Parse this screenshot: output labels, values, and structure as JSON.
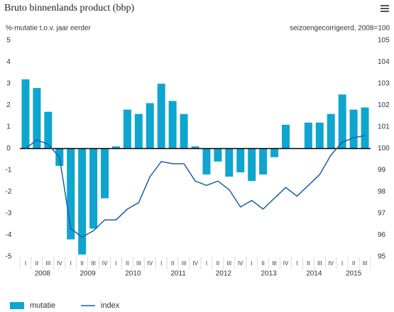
{
  "chart_data": {
    "type": "bar_line",
    "title": "Bruto binnenlands product (bbp)",
    "y_label": "%-mutatie t.o.v. jaar eerder",
    "y2_label": "seizoengecorrigeerd, 2008=100",
    "categories": [
      "I",
      "II",
      "III",
      "IV",
      "I",
      "II",
      "III",
      "IV",
      "I",
      "II",
      "III",
      "IV",
      "I",
      "II",
      "III",
      "IV",
      "I",
      "II",
      "III",
      "IV",
      "I",
      "II",
      "III",
      "IV",
      "I",
      "II",
      "III",
      "IV",
      "I",
      "II",
      "III"
    ],
    "years": [
      "2008",
      "2009",
      "2010",
      "2011",
      "2012",
      "2013",
      "2014",
      "2015"
    ],
    "series": [
      {
        "name": "mutatie",
        "color": "#0ea5cf",
        "kind": "bar",
        "values": [
          3.2,
          2.8,
          1.7,
          -0.8,
          -4.2,
          -4.9,
          -3.7,
          -2.3,
          0.1,
          1.8,
          1.6,
          2.1,
          3.0,
          2.2,
          1.6,
          0.1,
          -1.2,
          -0.6,
          -1.3,
          -1.1,
          -1.5,
          -1.2,
          -0.4,
          1.1,
          0,
          1.2,
          1.2,
          1.6,
          2.5,
          1.8,
          1.9
        ]
      },
      {
        "name": "index",
        "color": "#1a5ea8",
        "kind": "line",
        "axis": "y2",
        "values": [
          100.0,
          100.4,
          100.2,
          99.6,
          96.3,
          95.9,
          96.2,
          96.7,
          96.7,
          97.2,
          97.5,
          98.7,
          99.4,
          99.3,
          99.3,
          98.5,
          98.3,
          98.5,
          98.1,
          97.3,
          97.6,
          97.2,
          97.7,
          98.2,
          97.8,
          98.3,
          98.8,
          99.7,
          100.3,
          100.5,
          100.6
        ]
      }
    ],
    "ylim": [
      -5,
      5
    ],
    "yticks": [
      -5,
      -4,
      -3,
      -2,
      -1,
      0,
      1,
      2,
      3,
      4,
      5
    ],
    "y2lim": [
      95,
      105
    ],
    "y2ticks": [
      95,
      96,
      97,
      98,
      99,
      100,
      101,
      102,
      103,
      104,
      105
    ]
  }
}
